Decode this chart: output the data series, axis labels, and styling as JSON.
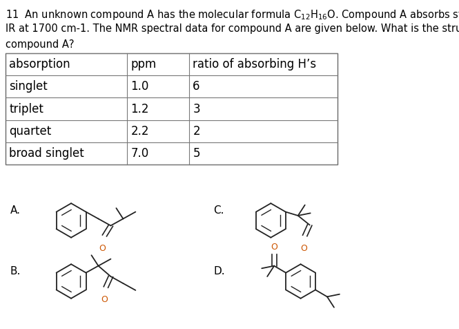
{
  "question_line1": "11  An unknown compound A has the molecular formula $\\mathregular{C_{12}H_{16}}$O. Compound A absorbs strongly in the",
  "question_line2": "IR at 1700 cm-1. The NMR spectral data for compound A are given below. What is the structure of",
  "question_line3": "compound A?",
  "table_headers": [
    "absorption",
    "ppm",
    "ratio of absorbing H’s"
  ],
  "table_rows": [
    [
      "singlet",
      "1.0",
      "6"
    ],
    [
      "triplet",
      "1.2",
      "3"
    ],
    [
      "quartet",
      "2.2",
      "2"
    ],
    [
      "broad singlet",
      "7.0",
      "5"
    ]
  ],
  "labels": [
    "A.",
    "B.",
    "C.",
    "D."
  ],
  "background_color": "#ffffff",
  "text_color": "#000000",
  "table_font_size": 12,
  "question_font_size": 10.5,
  "label_font_size": 11
}
